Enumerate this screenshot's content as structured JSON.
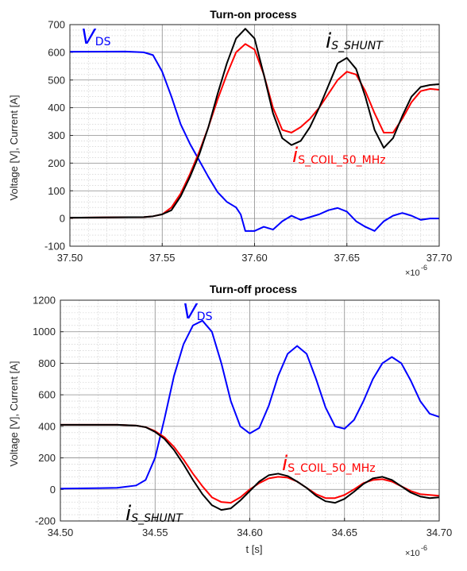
{
  "colors": {
    "vds": "#0000ff",
    "coil": "#ff0000",
    "shunt": "#000000"
  },
  "chart_data": [
    {
      "type": "line",
      "title": "Turn-on process",
      "xlabel": "",
      "ylabel": "Voltage [V], Current [A]",
      "xlim": [
        37.5,
        37.7
      ],
      "ylim": [
        -100,
        700
      ],
      "x_tick_labels": [
        "37.50",
        "37.55",
        "37.60",
        "37.65",
        "37.70"
      ],
      "y_tick_labels": [
        "-100",
        "0",
        "100",
        "200",
        "300",
        "400",
        "500",
        "600",
        "700"
      ],
      "x_exponent_base": "×10",
      "x_exponent_power": "-6",
      "grid": true,
      "annotations": [
        {
          "key": "vds",
          "main": "V",
          "sub": "DS"
        },
        {
          "key": "shunt",
          "main": "i",
          "sub": "S_SHUNT"
        },
        {
          "key": "coil",
          "main": "i",
          "sub": "S_COIL_50_MHz"
        }
      ],
      "series": [
        {
          "key": "vds",
          "x": [
            37.5,
            37.53,
            37.54,
            37.545,
            37.55,
            37.555,
            37.56,
            37.565,
            37.57,
            37.575,
            37.58,
            37.585,
            37.59,
            37.5925,
            37.595,
            37.6,
            37.605,
            37.61,
            37.615,
            37.62,
            37.625,
            37.63,
            37.635,
            37.64,
            37.645,
            37.65,
            37.655,
            37.66,
            37.665,
            37.67,
            37.675,
            37.68,
            37.685,
            37.69,
            37.695,
            37.7
          ],
          "y": [
            602,
            603,
            600,
            590,
            530,
            440,
            340,
            270,
            210,
            150,
            95,
            60,
            40,
            15,
            -45,
            -45,
            -30,
            -40,
            -10,
            10,
            -5,
            5,
            15,
            30,
            38,
            25,
            -10,
            -30,
            -45,
            -10,
            10,
            20,
            10,
            -5,
            0,
            0
          ]
        },
        {
          "key": "coil",
          "x": [
            37.5,
            37.54,
            37.545,
            37.55,
            37.555,
            37.56,
            37.565,
            37.57,
            37.575,
            37.58,
            37.585,
            37.59,
            37.595,
            37.6,
            37.605,
            37.61,
            37.615,
            37.62,
            37.625,
            37.63,
            37.635,
            37.64,
            37.645,
            37.65,
            37.655,
            37.66,
            37.665,
            37.67,
            37.675,
            37.68,
            37.685,
            37.69,
            37.695,
            37.7
          ],
          "y": [
            3,
            5,
            8,
            15,
            40,
            90,
            160,
            240,
            330,
            430,
            520,
            600,
            630,
            610,
            520,
            400,
            320,
            310,
            330,
            360,
            400,
            450,
            500,
            530,
            520,
            460,
            380,
            310,
            310,
            360,
            420,
            460,
            468,
            465
          ]
        },
        {
          "key": "shunt",
          "x": [
            37.5,
            37.54,
            37.545,
            37.55,
            37.555,
            37.56,
            37.565,
            37.57,
            37.575,
            37.58,
            37.585,
            37.59,
            37.595,
            37.6,
            37.605,
            37.61,
            37.615,
            37.62,
            37.625,
            37.63,
            37.635,
            37.64,
            37.645,
            37.65,
            37.655,
            37.66,
            37.665,
            37.67,
            37.675,
            37.68,
            37.685,
            37.69,
            37.695,
            37.7
          ],
          "y": [
            3,
            5,
            8,
            15,
            30,
            80,
            150,
            230,
            330,
            450,
            560,
            650,
            685,
            650,
            520,
            380,
            290,
            265,
            280,
            330,
            400,
            480,
            560,
            580,
            540,
            440,
            320,
            255,
            290,
            370,
            440,
            475,
            482,
            485
          ]
        }
      ]
    },
    {
      "type": "line",
      "title": "Turn-off process",
      "xlabel": "t [s]",
      "ylabel": "Voltage [V], Current [A]",
      "xlim": [
        34.5,
        34.7
      ],
      "ylim": [
        -200,
        1200
      ],
      "x_tick_labels": [
        "34.50",
        "34.55",
        "34.60",
        "34.65",
        "34.70"
      ],
      "y_tick_labels": [
        "-200",
        "0",
        "200",
        "400",
        "600",
        "800",
        "1000",
        "1200"
      ],
      "x_exponent_base": "×10",
      "x_exponent_power": "-6",
      "grid": true,
      "annotations": [
        {
          "key": "vds",
          "main": "V",
          "sub": "DS"
        },
        {
          "key": "coil",
          "main": "i",
          "sub": "S_COIL_50_MHz"
        },
        {
          "key": "shunt",
          "main": "i",
          "sub": "S_SHUNT"
        }
      ],
      "series": [
        {
          "key": "vds",
          "x": [
            34.5,
            34.53,
            34.54,
            34.545,
            34.55,
            34.555,
            34.56,
            34.565,
            34.57,
            34.575,
            34.58,
            34.585,
            34.59,
            34.595,
            34.6,
            34.605,
            34.61,
            34.615,
            34.62,
            34.625,
            34.63,
            34.635,
            34.64,
            34.645,
            34.65,
            34.655,
            34.66,
            34.665,
            34.67,
            34.675,
            34.68,
            34.685,
            34.69,
            34.695,
            34.7
          ],
          "y": [
            5,
            10,
            25,
            60,
            200,
            450,
            720,
            920,
            1040,
            1070,
            1000,
            800,
            560,
            400,
            355,
            390,
            530,
            720,
            860,
            910,
            860,
            700,
            520,
            400,
            385,
            440,
            560,
            700,
            800,
            840,
            800,
            690,
            560,
            480,
            460
          ]
        },
        {
          "key": "coil",
          "x": [
            34.5,
            34.53,
            34.54,
            34.545,
            34.55,
            34.555,
            34.56,
            34.565,
            34.57,
            34.575,
            34.58,
            34.585,
            34.59,
            34.595,
            34.6,
            34.605,
            34.61,
            34.615,
            34.62,
            34.625,
            34.63,
            34.635,
            34.64,
            34.645,
            34.65,
            34.655,
            34.66,
            34.665,
            34.67,
            34.675,
            34.68,
            34.685,
            34.69,
            34.695,
            34.7
          ],
          "y": [
            410,
            410,
            405,
            395,
            370,
            330,
            270,
            190,
            100,
            20,
            -50,
            -80,
            -85,
            -50,
            0,
            40,
            70,
            80,
            75,
            50,
            10,
            -30,
            -55,
            -55,
            -35,
            0,
            40,
            60,
            65,
            50,
            20,
            -10,
            -30,
            -35,
            -40
          ]
        },
        {
          "key": "shunt",
          "x": [
            34.5,
            34.53,
            34.54,
            34.545,
            34.55,
            34.555,
            34.56,
            34.565,
            34.57,
            34.575,
            34.58,
            34.585,
            34.59,
            34.595,
            34.6,
            34.605,
            34.61,
            34.615,
            34.62,
            34.625,
            34.63,
            34.635,
            34.64,
            34.645,
            34.65,
            34.655,
            34.66,
            34.665,
            34.67,
            34.675,
            34.68,
            34.685,
            34.69,
            34.695,
            34.7
          ],
          "y": [
            410,
            410,
            405,
            395,
            365,
            320,
            250,
            160,
            60,
            -30,
            -100,
            -130,
            -120,
            -70,
            -10,
            50,
            90,
            100,
            85,
            50,
            10,
            -40,
            -75,
            -85,
            -60,
            -15,
            35,
            70,
            80,
            60,
            20,
            -20,
            -45,
            -55,
            -50
          ]
        }
      ]
    }
  ]
}
